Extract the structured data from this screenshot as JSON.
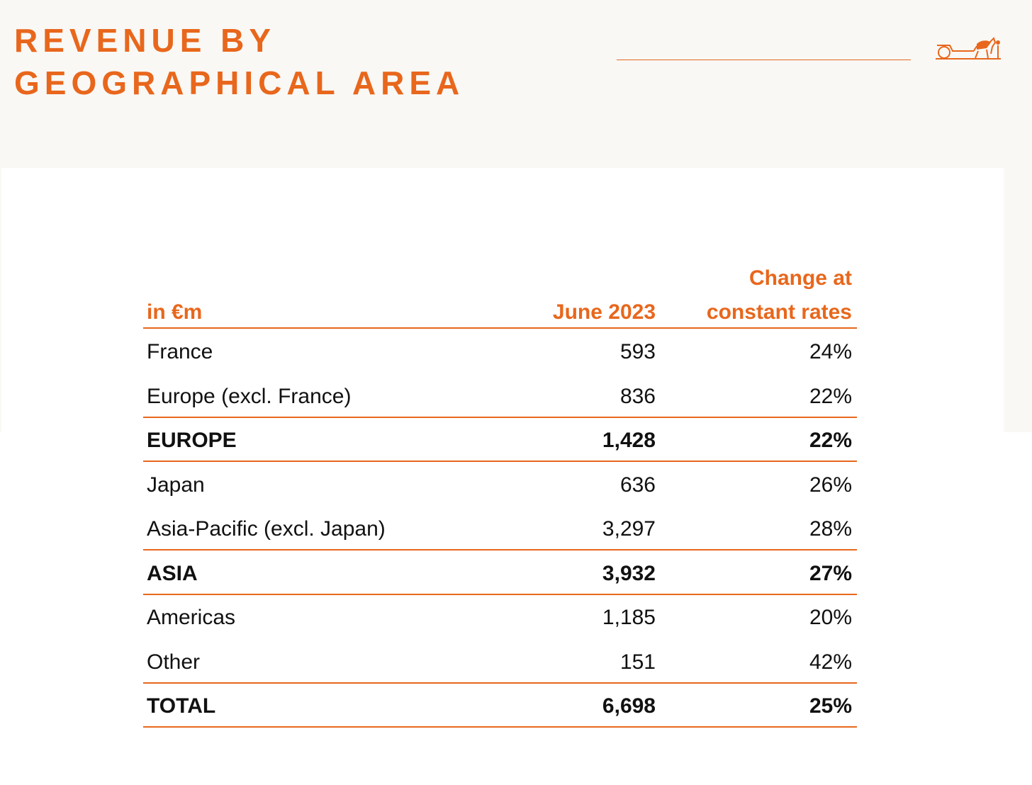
{
  "header": {
    "title": [
      "REVENUE BY",
      "GEOGRAPHICAL AREA"
    ]
  },
  "table": {
    "header": [
      "in €m",
      "June 2023",
      [
        "Change at",
        "constant rates"
      ]
    ],
    "rows": [
      {
        "cells": [
          "France",
          "593",
          "24%"
        ],
        "bold": false
      },
      {
        "cells": [
          "Europe (excl. France)",
          "836",
          "22%"
        ],
        "bold": false
      },
      {
        "cells": [
          "EUROPE",
          "1,428",
          "22%"
        ],
        "bold": true
      },
      {
        "cells": [
          "Japan",
          "636",
          "26%"
        ],
        "bold": false
      },
      {
        "cells": [
          "Asia-Pacific (excl. Japan)",
          "3,297",
          "28%"
        ],
        "bold": false
      },
      {
        "cells": [
          "ASIA",
          "3,932",
          "27%"
        ],
        "bold": true
      },
      {
        "cells": [
          "Americas",
          "1,185",
          "20%"
        ],
        "bold": false
      },
      {
        "cells": [
          "Other",
          "151",
          "42%"
        ],
        "bold": false
      },
      {
        "cells": [
          "TOTAL",
          "6,698",
          "25%"
        ],
        "bold": true
      }
    ]
  }
}
